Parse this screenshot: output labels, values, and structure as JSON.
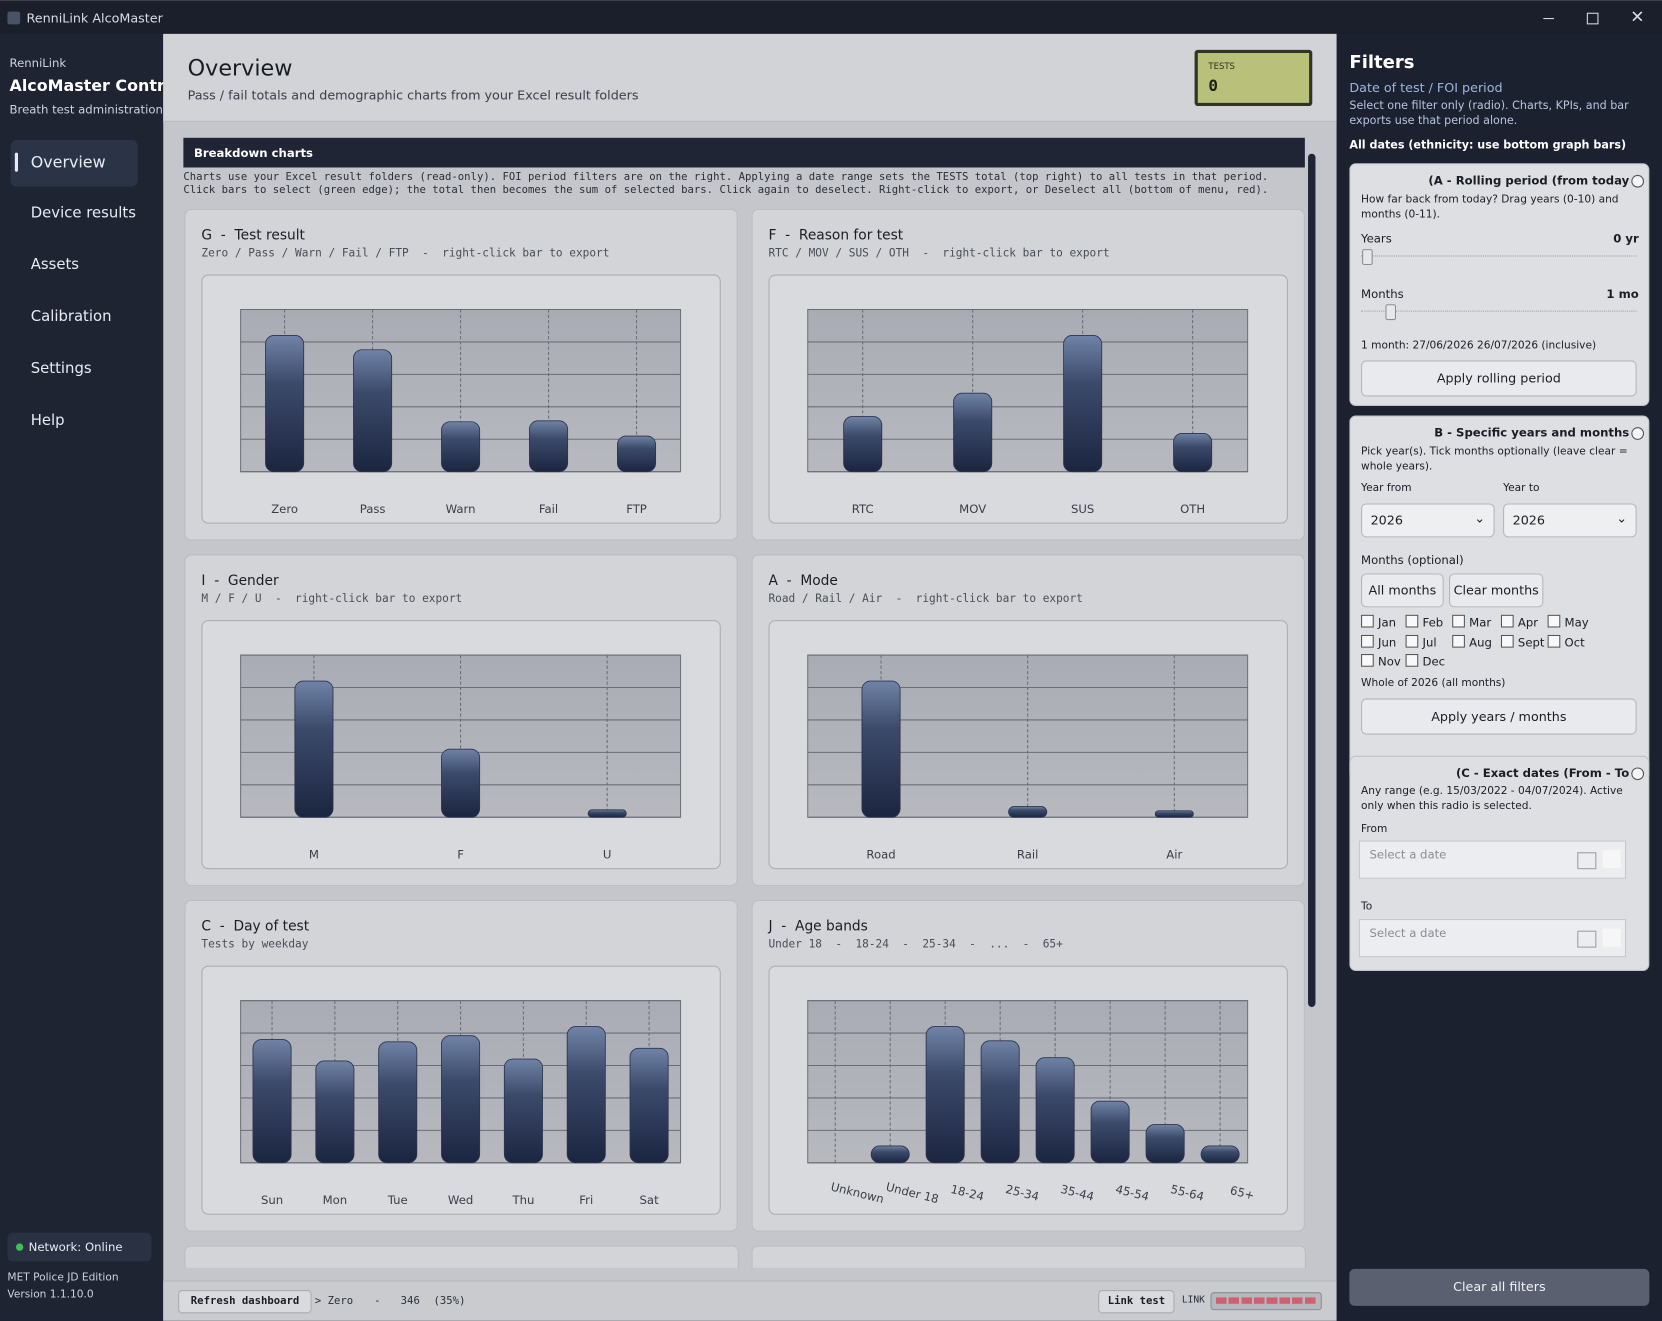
{
  "window": {
    "title": "RenniLink AlcoMaster"
  },
  "sidebar": {
    "brand": "RenniLink",
    "app": "AlcoMaster Control",
    "subtitle": "Breath test administration",
    "nav": [
      "Overview",
      "Device results",
      "Assets",
      "Calibration",
      "Settings",
      "Help"
    ],
    "network": "Network: Online",
    "edition": "MET Police JD Edition",
    "version": "Version 1.1.10.0"
  },
  "header": {
    "title": "Overview",
    "subtitle": "Pass / fail totals and demographic charts from your Excel result folders",
    "kpi_label": "TESTS",
    "kpi_value": 0
  },
  "breakdown": {
    "title": "Breakdown charts",
    "note": [
      "Charts use your Excel result folders (read-only). FOI period filters are on the right. Applying a date range sets the TESTS total (top right) to all tests in that period.",
      "Click bars to select (green edge); the total then becomes the sum of selected bars. Click again to deselect. Right-click to export, or Deselect all (bottom of menu, red)."
    ]
  },
  "chart_data": [
    {
      "type": "bar",
      "title": "G  -  Test result",
      "subtitle": "Zero / Pass / Warn / Fail / FTP  -  right-click bar to export",
      "categories": [
        "Zero",
        "Pass",
        "Warn",
        "Fail",
        "FTP"
      ],
      "values": [
        4.2,
        3.76,
        1.54,
        1.57,
        1.1
      ],
      "ylim": [
        0,
        5
      ],
      "yticks": [
        0,
        1,
        2,
        3,
        4,
        5
      ],
      "grid": true,
      "color": "#1b2540"
    },
    {
      "type": "bar",
      "title": "F  -  Reason for test",
      "subtitle": "RTC / MOV / SUS / OTH  -  right-click bar to export",
      "categories": [
        "RTC",
        "MOV",
        "SUS",
        "OTH"
      ],
      "values": [
        1.7,
        2.42,
        4.2,
        1.18
      ],
      "ylim": [
        0,
        5
      ],
      "yticks": [
        0,
        1,
        2,
        3,
        4,
        5
      ],
      "grid": true,
      "color": "#1b2540"
    },
    {
      "type": "bar",
      "title": "I  -  Gender",
      "subtitle": "M / F / U  -  right-click bar to export",
      "categories": [
        "M",
        "F",
        "U"
      ],
      "values": [
        4.2,
        2.1,
        0.23
      ],
      "ylim": [
        0,
        5
      ],
      "yticks": [
        0,
        1,
        2,
        3,
        4,
        5
      ],
      "grid": true,
      "color": "#1b2540"
    },
    {
      "type": "bar",
      "title": "A  -  Mode",
      "subtitle": "Road / Rail / Air  -  right-click bar to export",
      "categories": [
        "Road",
        "Rail",
        "Air"
      ],
      "values": [
        4.2,
        0.33,
        0.2
      ],
      "ylim": [
        0,
        5
      ],
      "yticks": [
        0,
        1,
        2,
        3,
        4,
        5
      ],
      "grid": true,
      "color": "#1b2540"
    },
    {
      "type": "bar",
      "title": "C  -  Day of test",
      "subtitle": "Tests by weekday",
      "categories": [
        "Sun",
        "Mon",
        "Tue",
        "Wed",
        "Thu",
        "Fri",
        "Sat"
      ],
      "values": [
        3.8,
        3.14,
        3.73,
        3.92,
        3.2,
        4.2,
        3.53
      ],
      "ylim": [
        0,
        5
      ],
      "yticks": [
        0,
        1,
        2,
        3,
        4,
        5
      ],
      "grid": true,
      "color": "#1b2540"
    },
    {
      "type": "bar",
      "title": "J  -  Age bands",
      "subtitle": "Under 18  -  18-24  -  25-34  -  ...  -  65+",
      "categories": [
        "Unknown",
        "Under 18",
        "18-24",
        "25-34",
        "35-44",
        "45-54",
        "55-64",
        "65+"
      ],
      "values": [
        0,
        0.52,
        4.2,
        3.76,
        3.24,
        1.9,
        1.18,
        0.52
      ],
      "ylim": [
        0,
        5
      ],
      "yticks": [
        0,
        1,
        2,
        3,
        4,
        5
      ],
      "grid": true,
      "color": "#1b2540"
    }
  ],
  "filters": {
    "title": "Filters",
    "subtitle": "Date of test / FOI period",
    "desc": "Select one filter only (radio). Charts, KPIs, and bar exports use that period alone.",
    "current": "All dates (ethnicity: use bottom graph bars)",
    "a": {
      "title": "(A - Rolling period (from today",
      "desc": "How far back from today? Drag years (0-10) and months (0-11).",
      "years_label": "Years",
      "years_value": "0 yr",
      "months_label": "Months",
      "months_value": "1 mo",
      "range": "1 month: 27/06/2026  26/07/2026 (inclusive)",
      "apply": "Apply rolling period"
    },
    "b": {
      "title": "B - Specific years and months",
      "desc": "Pick year(s). Tick months optionally (leave clear = whole years).",
      "year_from_label": "Year from",
      "year_from": "2026",
      "year_to_label": "Year to",
      "year_to": "2026",
      "months_label": "Months (optional)",
      "all_months": "All months",
      "clear_months": "Clear months",
      "months": [
        "Jan",
        "Feb",
        "Mar",
        "Apr",
        "May",
        "Jun",
        "Jul",
        "Aug",
        "Sept",
        "Oct",
        "Nov",
        "Dec"
      ],
      "summary": "Whole of 2026 (all months)",
      "apply": "Apply years / months"
    },
    "c": {
      "title": "(C - Exact dates (From - To",
      "desc": "Any range (e.g. 15/03/2022 - 04/07/2024). Active only when this radio is selected.",
      "from_label": "From",
      "from_placeholder": "Select a date",
      "to_label": "To",
      "to_placeholder": "Select a date"
    },
    "clear": "Clear all filters"
  },
  "status": {
    "refresh": "Refresh dashboard",
    "selection": "> Zero",
    "dash": "-",
    "count": 346,
    "percent": "(35%)",
    "link_test": "Link test",
    "link_label": "LINK"
  }
}
